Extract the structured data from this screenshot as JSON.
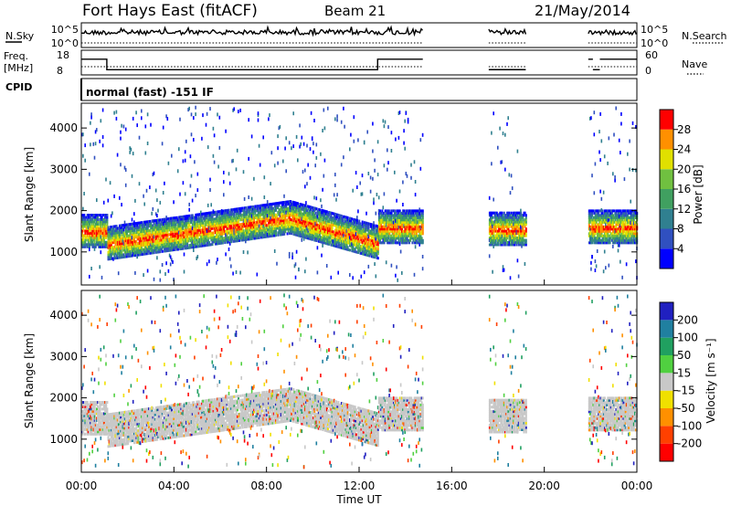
{
  "header": {
    "station": "Fort Hays East (fitACF)",
    "beam": "Beam 21",
    "date": "21/May/2014"
  },
  "strip": {
    "nsky_label": "N.Sky",
    "nsearch_label": "N.Search",
    "nsky_ticks": [
      "10^5",
      "10^0"
    ],
    "nsearch_ticks": [
      "10^5",
      "10^0"
    ],
    "freq_label_1": "Freq.",
    "freq_label_2": "[MHz]",
    "freq_ticks": [
      "18",
      "8"
    ],
    "nave_label": "Nave",
    "nave_ticks": [
      "60",
      "0"
    ],
    "cpid_label": "CPID",
    "cpid_text": "normal (fast) -151 IF"
  },
  "chart_data": [
    {
      "type": "heatmap",
      "name": "power",
      "ylabel": "Slant Range [km]",
      "yticks": [
        1000,
        2000,
        3000,
        4000
      ],
      "ylim": [
        200,
        4600
      ],
      "xlim": [
        0,
        24
      ],
      "colorbar_label": "Power [dB]",
      "colorbar_ticks": [
        "4",
        "8",
        "12",
        "16",
        "20",
        "24",
        "28"
      ],
      "colorbar_colors": [
        "#0000ff",
        "#3050c0",
        "#308090",
        "#40a060",
        "#70c040",
        "#e0e000",
        "#ff9000",
        "#ff0000"
      ],
      "data_segments_hours": [
        [
          0,
          14.75
        ],
        [
          17.6,
          19.2
        ],
        [
          21.9,
          24
        ]
      ]
    },
    {
      "type": "heatmap",
      "name": "velocity",
      "ylabel": "Slant Range [km]",
      "yticks": [
        1000,
        2000,
        3000,
        4000
      ],
      "ylim": [
        200,
        4600
      ],
      "xlim": [
        0,
        24
      ],
      "xlabel": "Time UT",
      "xticks": [
        "00:00",
        "04:00",
        "08:00",
        "12:00",
        "16:00",
        "20:00",
        "00:00"
      ],
      "colorbar_label": "Velocity [m s⁻¹]",
      "colorbar_ticks": [
        "200",
        "100",
        "50",
        "15",
        "-15",
        "-50",
        "-100",
        "-200"
      ],
      "colorbar_colors": [
        "#2020c0",
        "#2080a0",
        "#20a060",
        "#50d040",
        "#c8c8c8",
        "#f0e000",
        "#ff9000",
        "#ff4000",
        "#ff0000"
      ],
      "data_segments_hours": [
        [
          0,
          14.75
        ],
        [
          17.6,
          19.2
        ],
        [
          21.9,
          24
        ]
      ]
    }
  ]
}
